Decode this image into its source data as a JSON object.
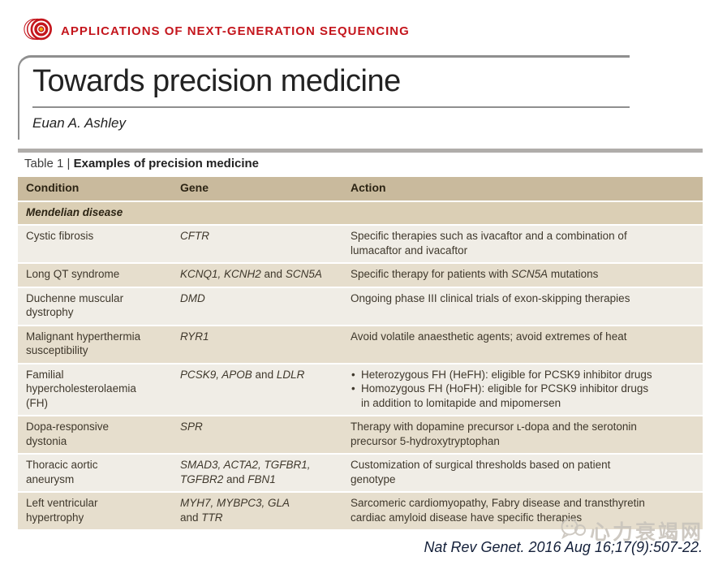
{
  "colors": {
    "accent": "#c4161d",
    "logo_center": "#f3a712",
    "rule_gray": "#8f8f8f",
    "bar_gray": "#b0adaa",
    "header_bg": "#c9ba9d",
    "section_bg": "#dbcfb5",
    "row_bg_light": "#f0ede6",
    "row_bg_tan": "#e6decd",
    "body_text": "#3f382c",
    "watermark_gray": "#c9c4bc",
    "citation_color": "#14203a"
  },
  "banner": {
    "label": "APPLICATIONS OF NEXT-GENERATION SEQUENCING",
    "logo_icon": "concentric-rings-icon"
  },
  "article": {
    "title": "Towards precision medicine",
    "author": "Euan A. Ashley"
  },
  "table": {
    "caption_prefix": "Table 1 | ",
    "caption_bold": "Examples of precision medicine",
    "columns": [
      "Condition",
      "Gene",
      "Action"
    ],
    "section_header": "Mendelian disease",
    "rows": [
      {
        "shade": "light",
        "condition": "Cystic fibrosis",
        "gene": [
          {
            "t": "CFTR",
            "i": true
          }
        ],
        "bullets": false,
        "action": [
          "Specific therapies such as ivacaftor and a combination of\nlumacaftor and ivacaftor"
        ]
      },
      {
        "shade": "tan",
        "condition": "Long QT syndrome",
        "gene": [
          {
            "t": "KCNQ1, KCNH2",
            "i": true
          },
          {
            "t": " and "
          },
          {
            "t": "SCN5A",
            "i": true
          }
        ],
        "bullets": false,
        "action": [
          [
            {
              "t": "Specific therapy for patients with "
            },
            {
              "t": "SCN5A",
              "i": true
            },
            {
              "t": " mutations"
            }
          ]
        ]
      },
      {
        "shade": "light",
        "condition": "Duchenne muscular\ndystrophy",
        "gene": [
          {
            "t": "DMD",
            "i": true
          }
        ],
        "bullets": false,
        "action": [
          "Ongoing phase III clinical trials of exon-skipping therapies"
        ]
      },
      {
        "shade": "tan",
        "condition": "Malignant hyperthermia\nsusceptibility",
        "gene": [
          {
            "t": "RYR1",
            "i": true
          }
        ],
        "bullets": false,
        "action": [
          "Avoid volatile anaesthetic agents; avoid extremes of heat"
        ]
      },
      {
        "shade": "light",
        "condition": "Familial\nhypercholesterolaemia\n(FH)",
        "gene": [
          {
            "t": "PCSK9, APOB",
            "i": true
          },
          {
            "t": " and "
          },
          {
            "t": "LDLR",
            "i": true
          }
        ],
        "bullets": true,
        "action": [
          "Heterozygous FH (HeFH): eligible for PCSK9 inhibitor drugs",
          "Homozygous FH (HoFH): eligible for PCSK9 inhibitor drugs\nin addition to lomitapide and mipomersen"
        ]
      },
      {
        "shade": "tan",
        "condition": "Dopa-responsive\ndystonia",
        "gene": [
          {
            "t": "SPR",
            "i": true
          }
        ],
        "bullets": false,
        "action": [
          "Therapy with dopamine precursor ʟ-dopa and the serotonin\nprecursor 5-hydroxytryptophan"
        ]
      },
      {
        "shade": "light",
        "condition": "Thoracic aortic\naneurysm",
        "gene": [
          {
            "t": "SMAD3, ACTA2, TGFBR1,",
            "i": true
          },
          {
            "br": true
          },
          {
            "t": "TGFBR2",
            "i": true
          },
          {
            "t": " and "
          },
          {
            "t": "FBN1",
            "i": true
          }
        ],
        "bullets": false,
        "action": [
          "Customization of surgical thresholds based on patient\ngenotype"
        ]
      },
      {
        "shade": "tan",
        "condition": "Left ventricular\nhypertrophy",
        "gene": [
          {
            "t": "MYH7, MYBPC3, GLA",
            "i": true
          },
          {
            "br": true
          },
          {
            "t": "and "
          },
          {
            "t": "TTR",
            "i": true
          }
        ],
        "bullets": false,
        "action": [
          "Sarcomeric cardiomyopathy, Fabry disease and transthyretin\ncardiac amyloid disease have specific therapies"
        ]
      }
    ]
  },
  "footer": {
    "watermark_text": "心力衰竭网",
    "watermark_icon": "chat-bubbles-icon",
    "citation": "Nat Rev Genet. 2016 Aug 16;17(9):507-22."
  }
}
